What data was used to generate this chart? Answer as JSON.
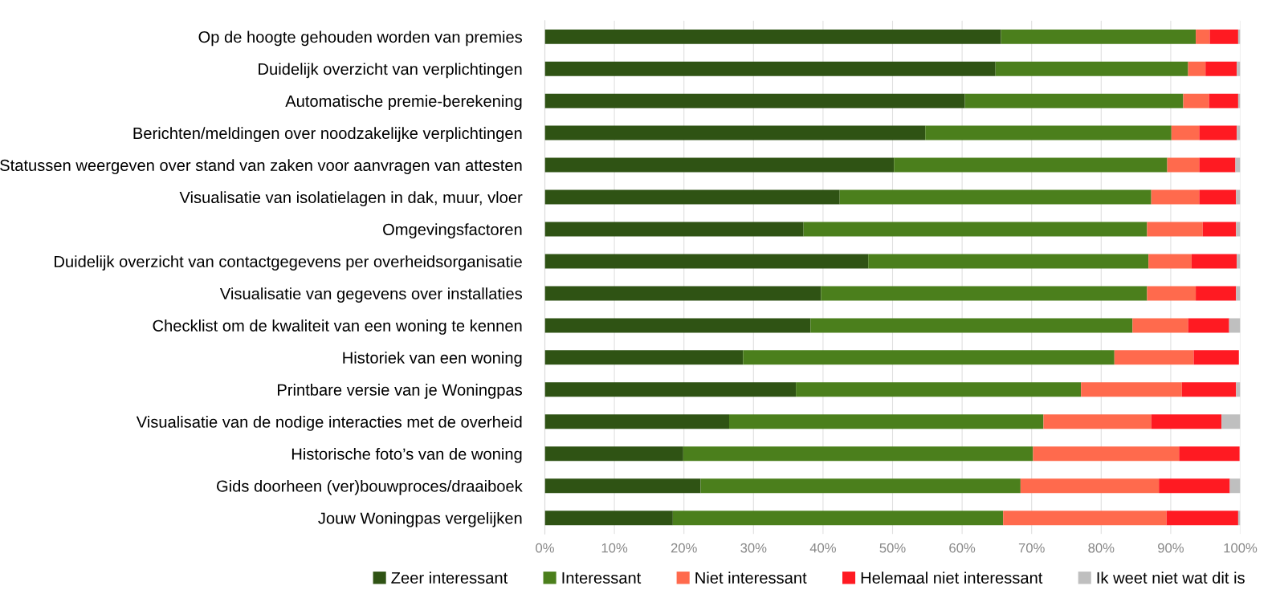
{
  "chart_data": {
    "type": "bar",
    "orientation": "horizontal",
    "stacked": true,
    "categories": [
      "Op de hoogte gehouden worden van premies",
      "Duidelijk overzicht van verplichtingen",
      "Automatische premie-berekening",
      "Berichten/meldingen over noodzakelijke verplichtingen",
      "Statussen weergeven over stand van zaken voor aanvragen van attesten",
      "Visualisatie van isolatielagen in dak, muur, vloer",
      "Omgevingsfactoren",
      "Duidelijk overzicht van contactgegevens per overheidsorganisatie",
      "Visualisatie van gegevens over installaties",
      "Checklist om de kwaliteit van een woning te kennen",
      "Historiek van een woning",
      "Printbare versie van je Woningpas",
      "Visualisatie van de nodige interacties met de overheid",
      "Historische foto’s van de woning",
      "Gids doorheen (ver)bouwproces/draaiboek",
      "Jouw Woningpas vergelijken"
    ],
    "series": [
      {
        "name": "Zeer interessant",
        "color": "#2f5314",
        "values": [
          65.6,
          64.8,
          60.4,
          54.7,
          50.2,
          42.4,
          37.2,
          46.5,
          39.7,
          38.2,
          28.5,
          36.1,
          26.5,
          19.9,
          22.4,
          18.4
        ]
      },
      {
        "name": "Interessant",
        "color": "#4b7f1c",
        "values": [
          28.0,
          27.7,
          31.4,
          35.4,
          39.3,
          44.8,
          49.4,
          40.3,
          46.9,
          46.3,
          53.4,
          41.0,
          45.2,
          50.3,
          46.0,
          47.5
        ]
      },
      {
        "name": "Niet interessant",
        "color": "#ff6a4d",
        "values": [
          2.0,
          2.5,
          3.7,
          4.0,
          4.6,
          6.9,
          8.0,
          6.2,
          7.0,
          8.0,
          11.4,
          14.5,
          15.5,
          21.0,
          19.9,
          23.5
        ]
      },
      {
        "name": "Helemaal niet interessant",
        "color": "#ff1a22",
        "values": [
          4.1,
          4.5,
          4.2,
          5.4,
          5.2,
          5.3,
          4.8,
          6.5,
          5.8,
          5.9,
          6.5,
          7.8,
          10.1,
          8.7,
          10.2,
          10.3
        ]
      },
      {
        "name": "Ik weet niet wat dit is",
        "color": "#bfbfbf",
        "values": [
          0.3,
          0.5,
          0.3,
          0.5,
          0.7,
          0.6,
          0.6,
          0.5,
          0.6,
          1.6,
          null,
          0.6,
          2.7,
          null,
          1.5,
          0.3
        ]
      }
    ],
    "xlim": [
      0,
      100
    ],
    "xticks": [
      {
        "value": 0,
        "label": "0%"
      },
      {
        "value": 10,
        "label": "10%"
      },
      {
        "value": 20,
        "label": "20%"
      },
      {
        "value": 30,
        "label": "30%"
      },
      {
        "value": 40,
        "label": "40%"
      },
      {
        "value": 50,
        "label": "50%"
      },
      {
        "value": 60,
        "label": "60%"
      },
      {
        "value": 70,
        "label": "70%"
      },
      {
        "value": 80,
        "label": "80%"
      },
      {
        "value": 90,
        "label": "90%"
      },
      {
        "value": 100,
        "label": "100%"
      }
    ],
    "grid": "x",
    "legend": "bottom"
  }
}
